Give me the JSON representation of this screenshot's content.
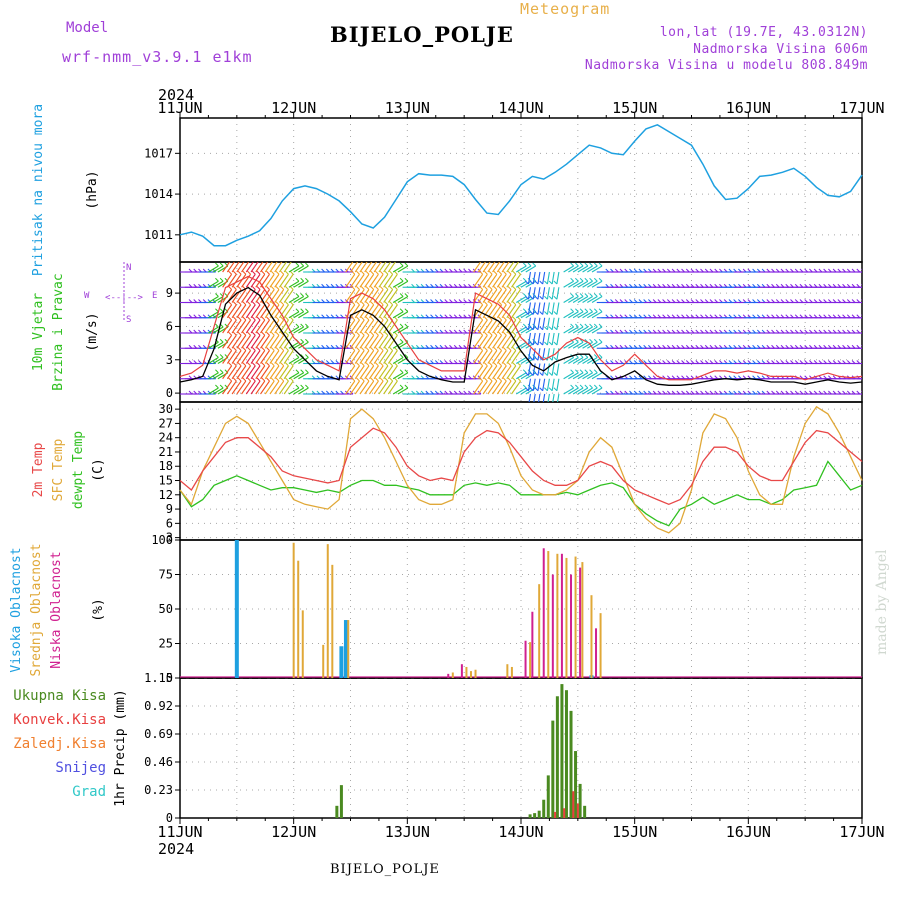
{
  "header": {
    "model_label": "Model",
    "model_value": "wrf-nmm_v3.9.1 e1km",
    "station": "BIJELO_POLJE",
    "meteogram_label": "Meteogram",
    "lonlat": "lon,lat (19.7E, 43.0312N)",
    "elevation": "Nadmorska Visina 606m",
    "elevation_model": "Nadmorska Visina u modelu 808.849m"
  },
  "footer": {
    "station": "BIJELO_POLJE",
    "credit": "made by Angel"
  },
  "time_axis": {
    "year": "2024",
    "ticks": [
      "11JUN",
      "12JUN",
      "13JUN",
      "14JUN",
      "15JUN",
      "16JUN",
      "17JUN"
    ]
  },
  "colors": {
    "pressure": "#1ea0e0",
    "wind_speed": "#000000",
    "gust": "#e84040",
    "temp2m": "#e84848",
    "sfc_temp": "#e0a838",
    "dewpoint": "#30c020",
    "high_cloud": "#1ea0e0",
    "mid_cloud": "#e0a838",
    "low_cloud": "#d02090",
    "total_precip": "#4a8a20",
    "conv_precip": "#e84040",
    "frozen": "#f08030",
    "snow": "#5050e0",
    "hail": "#30c8c8",
    "label_purple": "#a040d8"
  },
  "chart_data": [
    {
      "type": "line",
      "panel": "pressure",
      "ylabel": "(hPa)",
      "side_labels": [
        "Pritisak na nivou mora"
      ],
      "yticks": [
        1011,
        1014,
        1017
      ],
      "ylim": [
        1009.0,
        1019.6
      ],
      "x_days": [
        0.0,
        0.1,
        0.2,
        0.3,
        0.4,
        0.5,
        0.6,
        0.7,
        0.8,
        0.9,
        1.0,
        1.1,
        1.2,
        1.3,
        1.4,
        1.5,
        1.6,
        1.7,
        1.8,
        1.9,
        2.0,
        2.1,
        2.2,
        2.3,
        2.4,
        2.5,
        2.6,
        2.7,
        2.8,
        2.9,
        3.0,
        3.1,
        3.2,
        3.3,
        3.4,
        3.5,
        3.6,
        3.7,
        3.8,
        3.9,
        4.0,
        4.1,
        4.2,
        4.3,
        4.4,
        4.5,
        4.6,
        4.7,
        4.8,
        4.9,
        5.0,
        5.1,
        5.2,
        5.3,
        5.4,
        5.5,
        5.6,
        5.7,
        5.8,
        5.9,
        6.0
      ],
      "values": [
        1011.0,
        1011.2,
        1010.9,
        1010.2,
        1010.2,
        1010.6,
        1010.9,
        1011.3,
        1012.2,
        1013.5,
        1014.4,
        1014.6,
        1014.4,
        1014.0,
        1013.5,
        1012.7,
        1011.8,
        1011.5,
        1012.3,
        1013.6,
        1014.9,
        1015.5,
        1015.4,
        1015.4,
        1015.3,
        1014.7,
        1013.6,
        1012.6,
        1012.5,
        1013.5,
        1014.7,
        1015.3,
        1015.1,
        1015.6,
        1016.2,
        1016.9,
        1017.6,
        1017.4,
        1017.0,
        1016.9,
        1017.9,
        1018.8,
        1019.1,
        1018.6,
        1018.1,
        1017.6,
        1016.2,
        1014.6,
        1013.6,
        1013.7,
        1014.4,
        1015.3,
        1015.4,
        1015.6,
        1015.9,
        1015.3,
        1014.5,
        1013.9,
        1013.8,
        1014.2,
        1015.4
      ]
    },
    {
      "type": "line",
      "panel": "wind",
      "ylabel": "(m/s)",
      "side_labels": [
        "10m Vjetar",
        "Brzina i Pravac"
      ],
      "direction_legend": {
        "w": "W",
        "e": "E",
        "n": "N",
        "s": "S"
      },
      "yticks": [
        0,
        3,
        6,
        9
      ],
      "ylim": [
        -0.8,
        11.8
      ],
      "x_days": [
        0.0,
        0.1,
        0.2,
        0.3,
        0.4,
        0.5,
        0.6,
        0.7,
        0.8,
        0.9,
        1.0,
        1.1,
        1.2,
        1.3,
        1.4,
        1.5,
        1.6,
        1.7,
        1.8,
        1.9,
        2.0,
        2.1,
        2.2,
        2.3,
        2.4,
        2.5,
        2.6,
        2.7,
        2.8,
        2.9,
        3.0,
        3.1,
        3.2,
        3.3,
        3.4,
        3.5,
        3.6,
        3.7,
        3.8,
        3.9,
        4.0,
        4.1,
        4.2,
        4.3,
        4.4,
        4.5,
        4.6,
        4.7,
        4.8,
        4.9,
        5.0,
        5.1,
        5.2,
        5.3,
        5.4,
        5.5,
        5.6,
        5.7,
        5.8,
        5.9,
        6.0
      ],
      "speed": [
        1.0,
        1.2,
        1.5,
        4.0,
        8.0,
        9.0,
        9.5,
        8.8,
        7.0,
        5.5,
        4.0,
        3.0,
        2.0,
        1.5,
        1.2,
        7.0,
        7.5,
        7.0,
        6.0,
        4.5,
        3.0,
        2.0,
        1.5,
        1.2,
        1.0,
        1.0,
        7.5,
        7.0,
        6.5,
        5.5,
        3.8,
        2.5,
        2.0,
        2.8,
        3.2,
        3.5,
        3.5,
        2.0,
        1.2,
        1.5,
        2.0,
        1.2,
        0.8,
        0.7,
        0.7,
        0.8,
        1.0,
        1.2,
        1.3,
        1.2,
        1.3,
        1.2,
        1.0,
        1.0,
        1.0,
        0.8,
        1.0,
        1.2,
        1.0,
        0.9,
        1.0
      ],
      "gust": [
        1.5,
        1.8,
        2.5,
        6.0,
        9.5,
        10.0,
        10.5,
        10.0,
        8.5,
        7.0,
        5.0,
        4.0,
        3.0,
        2.5,
        2.0,
        8.5,
        9.0,
        8.5,
        7.5,
        6.0,
        4.5,
        3.0,
        2.5,
        2.0,
        2.0,
        2.0,
        9.0,
        8.5,
        8.0,
        7.0,
        5.0,
        4.0,
        3.0,
        3.5,
        4.5,
        5.0,
        4.5,
        3.0,
        2.0,
        2.5,
        3.5,
        2.5,
        1.5,
        1.2,
        1.2,
        1.2,
        1.6,
        2.0,
        2.0,
        1.8,
        2.0,
        1.8,
        1.5,
        1.5,
        1.5,
        1.2,
        1.5,
        1.8,
        1.5,
        1.4,
        1.5
      ]
    },
    {
      "type": "line",
      "panel": "temperature",
      "ylabel": "(C)",
      "side_labels": [
        "2m Temp",
        "SFC Temp",
        "dewpt Temp"
      ],
      "yticks": [
        3,
        6,
        9,
        12,
        15,
        18,
        21,
        24,
        27,
        30
      ],
      "ylim": [
        2.5,
        31.5
      ],
      "x_days": [
        0.0,
        0.1,
        0.2,
        0.3,
        0.4,
        0.5,
        0.6,
        0.7,
        0.8,
        0.9,
        1.0,
        1.1,
        1.2,
        1.3,
        1.4,
        1.5,
        1.6,
        1.7,
        1.8,
        1.9,
        2.0,
        2.1,
        2.2,
        2.3,
        2.4,
        2.5,
        2.6,
        2.7,
        2.8,
        2.9,
        3.0,
        3.1,
        3.2,
        3.3,
        3.4,
        3.5,
        3.6,
        3.7,
        3.8,
        3.9,
        4.0,
        4.1,
        4.2,
        4.3,
        4.4,
        4.5,
        4.6,
        4.7,
        4.8,
        4.9,
        5.0,
        5.1,
        5.2,
        5.3,
        5.4,
        5.5,
        5.6,
        5.7,
        5.8,
        5.9,
        6.0
      ],
      "temp2m": [
        15,
        13,
        17,
        20,
        23,
        24,
        24,
        22,
        20,
        17,
        16,
        15.5,
        15,
        14.5,
        15,
        22,
        24,
        26,
        25,
        22,
        18,
        16,
        15,
        15.5,
        15,
        21,
        24,
        25.5,
        25,
        23,
        20,
        17,
        15,
        14,
        14,
        15,
        18,
        19,
        18,
        15,
        13,
        12,
        11,
        10,
        11,
        14,
        19,
        22,
        22,
        21,
        18,
        16,
        15,
        15,
        19,
        23,
        25.5,
        25,
        23,
        21,
        19
      ],
      "sfc_temp": [
        13,
        10,
        17,
        22,
        27,
        28.5,
        27,
        23,
        19,
        15,
        11,
        10,
        9.5,
        9,
        11,
        28,
        30,
        28,
        24,
        19,
        14,
        11,
        10,
        10,
        11,
        25,
        29,
        29,
        27,
        22,
        16,
        13,
        12,
        12,
        13,
        15,
        21,
        24,
        22,
        16,
        10,
        7,
        5,
        4,
        6,
        13,
        25,
        29,
        28,
        24,
        17,
        12,
        10,
        10,
        20,
        27,
        30.5,
        29,
        25,
        20,
        15
      ],
      "dewpoint": [
        13,
        9.5,
        11,
        14,
        15,
        16,
        15,
        14,
        13,
        13.5,
        13.5,
        13,
        12.5,
        13,
        12.5,
        14,
        15,
        15,
        14,
        14,
        13.5,
        13,
        12,
        12,
        12,
        14,
        14.5,
        14,
        14.5,
        14,
        12,
        12,
        12,
        12,
        12.5,
        12,
        13,
        14,
        14.5,
        13.5,
        10,
        8,
        6.5,
        5.5,
        9,
        10,
        11.5,
        10,
        11,
        12,
        11,
        11,
        10,
        11,
        13,
        13.5,
        14,
        19,
        16,
        13,
        14
      ]
    },
    {
      "type": "bar",
      "panel": "cloud",
      "ylabel": "(%)",
      "side_labels": [
        "Visoka Oblacnost",
        "Srednja Oblacnost",
        "Niska Oblacnost"
      ],
      "yticks": [
        0,
        25,
        50,
        75,
        100
      ],
      "ylim": [
        0,
        100
      ],
      "high": [
        [
          0.5,
          100
        ],
        [
          1.42,
          23
        ],
        [
          1.46,
          42
        ],
        [
          3.62,
          2
        ]
      ],
      "mid": [
        [
          1.0,
          98
        ],
        [
          1.04,
          85
        ],
        [
          1.08,
          49
        ],
        [
          1.26,
          24
        ],
        [
          1.3,
          97
        ],
        [
          1.34,
          82
        ],
        [
          1.48,
          42
        ],
        [
          2.4,
          4
        ],
        [
          2.52,
          8
        ],
        [
          2.56,
          5
        ],
        [
          2.6,
          6
        ],
        [
          2.88,
          10
        ],
        [
          2.92,
          8
        ],
        [
          3.08,
          26
        ],
        [
          3.16,
          68
        ],
        [
          3.24,
          92
        ],
        [
          3.32,
          90
        ],
        [
          3.4,
          87
        ],
        [
          3.48,
          88
        ],
        [
          3.54,
          84
        ],
        [
          3.62,
          60
        ],
        [
          3.7,
          47
        ]
      ],
      "low": [
        [
          2.36,
          3
        ],
        [
          2.48,
          10
        ],
        [
          3.04,
          27
        ],
        [
          3.1,
          48
        ],
        [
          3.2,
          94
        ],
        [
          3.28,
          75
        ],
        [
          3.36,
          90
        ],
        [
          3.44,
          75
        ],
        [
          3.52,
          80
        ],
        [
          3.66,
          36
        ]
      ]
    },
    {
      "type": "bar",
      "panel": "precip",
      "ylabel": "1hr Precip (mm)",
      "side_labels": [
        "Ukupna Kisa",
        "Konvek.Kisa",
        "Zaledj.Kisa",
        "Snijeg",
        "Grad"
      ],
      "yticks": [
        0,
        0.23,
        0.46,
        0.69,
        0.92,
        1.15
      ],
      "ylim": [
        0,
        1.15
      ],
      "total": [
        [
          1.38,
          0.1
        ],
        [
          1.42,
          0.27
        ],
        [
          3.08,
          0.03
        ],
        [
          3.12,
          0.04
        ],
        [
          3.16,
          0.06
        ],
        [
          3.2,
          0.15
        ],
        [
          3.24,
          0.35
        ],
        [
          3.28,
          0.8
        ],
        [
          3.32,
          1.0
        ],
        [
          3.36,
          1.1
        ],
        [
          3.4,
          1.05
        ],
        [
          3.44,
          0.88
        ],
        [
          3.48,
          0.55
        ],
        [
          3.52,
          0.28
        ],
        [
          3.56,
          0.1
        ]
      ],
      "convective": [
        [
          3.3,
          0.05
        ],
        [
          3.38,
          0.08
        ],
        [
          3.46,
          0.22
        ],
        [
          3.5,
          0.12
        ]
      ]
    }
  ]
}
